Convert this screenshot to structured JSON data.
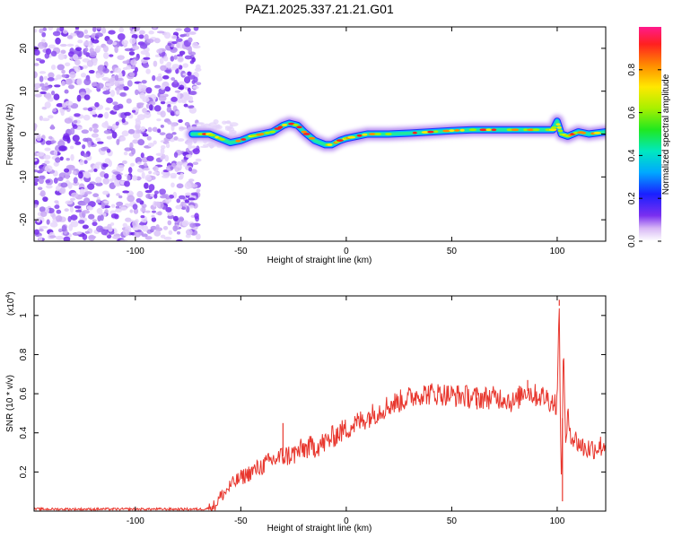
{
  "chart_data": [
    {
      "type": "heatmap",
      "title": "PAZ1.2025.337.21.21.G01",
      "xlabel": "Height of straight line (km)",
      "ylabel": "Frequency (Hz)",
      "xlim": [
        -148,
        123
      ],
      "ylim": [
        -25,
        25
      ],
      "x_ticks": [
        -100,
        -50,
        0,
        50,
        100
      ],
      "x_tick_labels": [
        "-100",
        "-50",
        "0",
        "50",
        "100"
      ],
      "y_ticks": [
        -20,
        -10,
        0,
        10,
        20
      ],
      "y_tick_labels": [
        "-20",
        "-10",
        "0",
        "10",
        "20"
      ],
      "noise_region_x": [
        -148,
        -70
      ],
      "ridge": {
        "x": [
          -73,
          -65,
          -60,
          -55,
          -50,
          -45,
          -40,
          -35,
          -30,
          -27,
          -23,
          -20,
          -15,
          -10,
          -7,
          -3,
          0,
          5,
          10,
          20,
          30,
          40,
          50,
          60,
          70,
          80,
          90,
          98,
          100,
          102,
          105,
          110,
          115,
          123
        ],
        "y": [
          0,
          0,
          -1,
          -2,
          -1.5,
          -0.5,
          0,
          0.5,
          2,
          2.5,
          2,
          0.5,
          -1.5,
          -2.5,
          -2.5,
          -1.5,
          -1,
          -0.5,
          0,
          0,
          0.2,
          0.5,
          0.8,
          1,
          1,
          1,
          1,
          1,
          3,
          0,
          -0.5,
          0.5,
          0,
          0.5
        ]
      },
      "colorbar": {
        "label": "Normalized spectral amplitude",
        "range": [
          0,
          1
        ],
        "ticks": [
          0,
          0.2,
          0.4,
          0.6,
          0.8
        ],
        "tick_labels": [
          "0.0",
          "0.2",
          "0.4",
          "0.6",
          "0.8"
        ]
      }
    },
    {
      "type": "line",
      "xlabel": "Height of straight line (km)",
      "ylabel": "SNR (10 * v/v)",
      "scale_label": "(x10",
      "scale_exp": "4",
      "scale_close": ")",
      "xlim": [
        -148,
        123
      ],
      "ylim": [
        0,
        1.1
      ],
      "x_ticks": [
        -100,
        -50,
        0,
        50,
        100
      ],
      "x_tick_labels": [
        "-100",
        "-50",
        "0",
        "50",
        "100"
      ],
      "y_ticks": [
        0.2,
        0.4,
        0.6,
        0.8,
        1
      ],
      "y_tick_labels": [
        "0.2",
        "0.4",
        "0.6",
        "0.8",
        "1"
      ],
      "series": [
        {
          "name": "SNR",
          "color": "#e8372e",
          "x": [
            -148,
            -120,
            -100,
            -80,
            -68,
            -65,
            -62,
            -60,
            -57,
            -55,
            -50,
            -45,
            -40,
            -35,
            -30,
            -25,
            -20,
            -15,
            -10,
            -5,
            0,
            5,
            10,
            15,
            20,
            25,
            30,
            35,
            40,
            45,
            50,
            55,
            60,
            65,
            70,
            75,
            80,
            83,
            85,
            88,
            90,
            92,
            95,
            97,
            100,
            101,
            102,
            103,
            104,
            105,
            107,
            110,
            113,
            116,
            120,
            123
          ],
          "y": [
            0.01,
            0.01,
            0.01,
            0.01,
            0.01,
            0.015,
            0.03,
            0.07,
            0.1,
            0.13,
            0.17,
            0.2,
            0.23,
            0.26,
            0.28,
            0.29,
            0.32,
            0.33,
            0.35,
            0.39,
            0.42,
            0.45,
            0.48,
            0.51,
            0.54,
            0.56,
            0.58,
            0.6,
            0.6,
            0.6,
            0.59,
            0.59,
            0.58,
            0.58,
            0.58,
            0.58,
            0.55,
            0.6,
            0.62,
            0.6,
            0.59,
            0.59,
            0.58,
            0.56,
            0.55,
            1.05,
            0.05,
            0.9,
            0.3,
            0.48,
            0.38,
            0.35,
            0.32,
            0.32,
            0.33,
            0.34
          ]
        }
      ],
      "spikes": [
        {
          "x": -30,
          "y": 0.45
        },
        {
          "x": 62,
          "y": 0.52
        },
        {
          "x": 86,
          "y": 0.67
        },
        {
          "x": 101,
          "y": 1.08
        },
        {
          "x": 102.5,
          "y": 0.05
        }
      ]
    }
  ]
}
